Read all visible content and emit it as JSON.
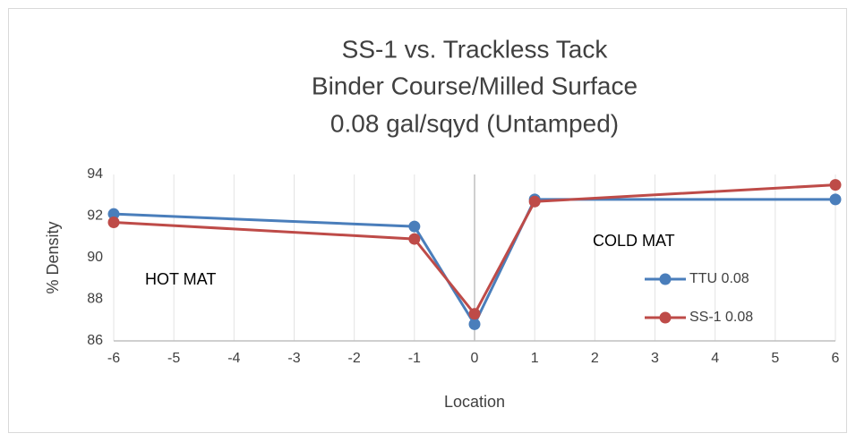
{
  "chart_data": {
    "type": "line",
    "title": "SS-1 vs. Trackless Tack",
    "subtitle": [
      "Binder Course/Milled Surface",
      "0.08 gal/sqyd (Untamped)"
    ],
    "x_label": "Location",
    "y_label": "% Density",
    "x": [
      -6,
      -1,
      0,
      1,
      6
    ],
    "series": [
      {
        "name": "TTU 0.08",
        "color": "#4a7ebb",
        "values": [
          92.1,
          91.5,
          86.8,
          92.8,
          92.8
        ]
      },
      {
        "name": "SS-1 0.08",
        "color": "#be4b48",
        "values": [
          91.7,
          90.9,
          87.3,
          92.7,
          93.5
        ]
      }
    ],
    "xlim": [
      -6,
      6
    ],
    "xticks": [
      -6,
      -5,
      -4,
      -3,
      -2,
      -1,
      0,
      1,
      2,
      3,
      4,
      5,
      6
    ],
    "ylim": [
      86,
      94
    ],
    "yticks": [
      86,
      88,
      90,
      92,
      94
    ],
    "annotations": [
      "HOT MAT",
      "COLD MAT"
    ],
    "grid": "x",
    "legend": "right"
  }
}
